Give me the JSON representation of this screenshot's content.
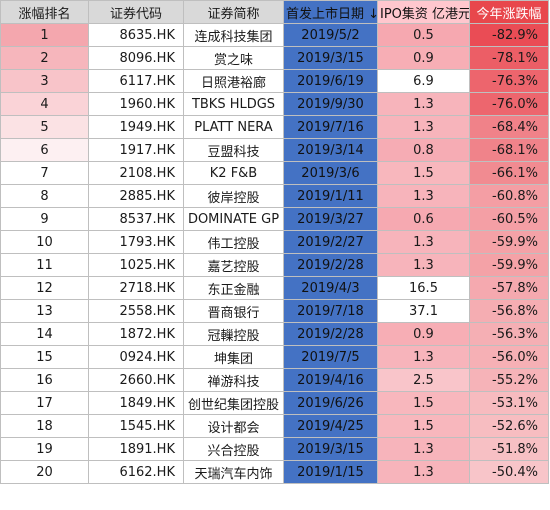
{
  "table": {
    "headers": [
      "涨幅排名",
      "证券代码",
      "证券简称",
      "首发上市日期 ↓",
      "IPO集资 亿港元",
      "今年涨跌幅"
    ],
    "rows": [
      {
        "rank": "1",
        "code": "8635.HK",
        "name": "连成科技集团",
        "date": "2019/5/2",
        "ipo": "0.5",
        "change": "-82.9%"
      },
      {
        "rank": "2",
        "code": "8096.HK",
        "name": "赏之味",
        "date": "2019/3/15",
        "ipo": "0.9",
        "change": "-78.1%"
      },
      {
        "rank": "3",
        "code": "6117.HK",
        "name": "日照港裕廊",
        "date": "2019/6/19",
        "ipo": "6.9",
        "change": "-76.3%"
      },
      {
        "rank": "4",
        "code": "1960.HK",
        "name": "TBKS HLDGS",
        "date": "2019/9/30",
        "ipo": "1.3",
        "change": "-76.0%"
      },
      {
        "rank": "5",
        "code": "1949.HK",
        "name": "PLATT NERA",
        "date": "2019/7/16",
        "ipo": "1.3",
        "change": "-68.4%"
      },
      {
        "rank": "6",
        "code": "1917.HK",
        "name": "豆盟科技",
        "date": "2019/3/14",
        "ipo": "0.8",
        "change": "-68.1%"
      },
      {
        "rank": "7",
        "code": "2108.HK",
        "name": "K2 F&B",
        "date": "2019/3/6",
        "ipo": "1.5",
        "change": "-66.1%"
      },
      {
        "rank": "8",
        "code": "2885.HK",
        "name": "彼岸控股",
        "date": "2019/1/11",
        "ipo": "1.3",
        "change": "-60.8%"
      },
      {
        "rank": "9",
        "code": "8537.HK",
        "name": "DOMINATE GP",
        "date": "2019/3/27",
        "ipo": "0.6",
        "change": "-60.5%"
      },
      {
        "rank": "10",
        "code": "1793.HK",
        "name": "伟工控股",
        "date": "2019/2/27",
        "ipo": "1.3",
        "change": "-59.9%"
      },
      {
        "rank": "11",
        "code": "1025.HK",
        "name": "嘉艺控股",
        "date": "2019/2/28",
        "ipo": "1.3",
        "change": "-59.9%"
      },
      {
        "rank": "12",
        "code": "2718.HK",
        "name": "东正金融",
        "date": "2019/4/3",
        "ipo": "16.5",
        "change": "-57.8%"
      },
      {
        "rank": "13",
        "code": "2558.HK",
        "name": "晋商银行",
        "date": "2019/7/18",
        "ipo": "37.1",
        "change": "-56.8%"
      },
      {
        "rank": "14",
        "code": "1872.HK",
        "name": "冠轈控股",
        "date": "2019/2/28",
        "ipo": "0.9",
        "change": "-56.3%"
      },
      {
        "rank": "15",
        "code": "0924.HK",
        "name": "坤集团",
        "date": "2019/7/5",
        "ipo": "1.3",
        "change": "-56.0%"
      },
      {
        "rank": "16",
        "code": "2660.HK",
        "name": "禅游科技",
        "date": "2019/4/16",
        "ipo": "2.5",
        "change": "-55.2%"
      },
      {
        "rank": "17",
        "code": "1849.HK",
        "name": "创世纪集团控股",
        "date": "2019/6/26",
        "ipo": "1.5",
        "change": "-53.1%"
      },
      {
        "rank": "18",
        "code": "1545.HK",
        "name": "设计都会",
        "date": "2019/4/25",
        "ipo": "1.5",
        "change": "-52.6%"
      },
      {
        "rank": "19",
        "code": "1891.HK",
        "name": "兴合控股",
        "date": "2019/3/15",
        "ipo": "1.3",
        "change": "-51.8%"
      },
      {
        "rank": "20",
        "code": "6162.HK",
        "name": "天瑞汽车内饰",
        "date": "2019/1/15",
        "ipo": "1.3",
        "change": "-50.4%"
      }
    ]
  },
  "colors": {
    "header_gray": "#d9d9d9",
    "date_blue": "#4472c4",
    "ipo_header_pink": "#ffc7ce",
    "change_header_red": "#e8474c",
    "grid": "#bfbfbf"
  }
}
